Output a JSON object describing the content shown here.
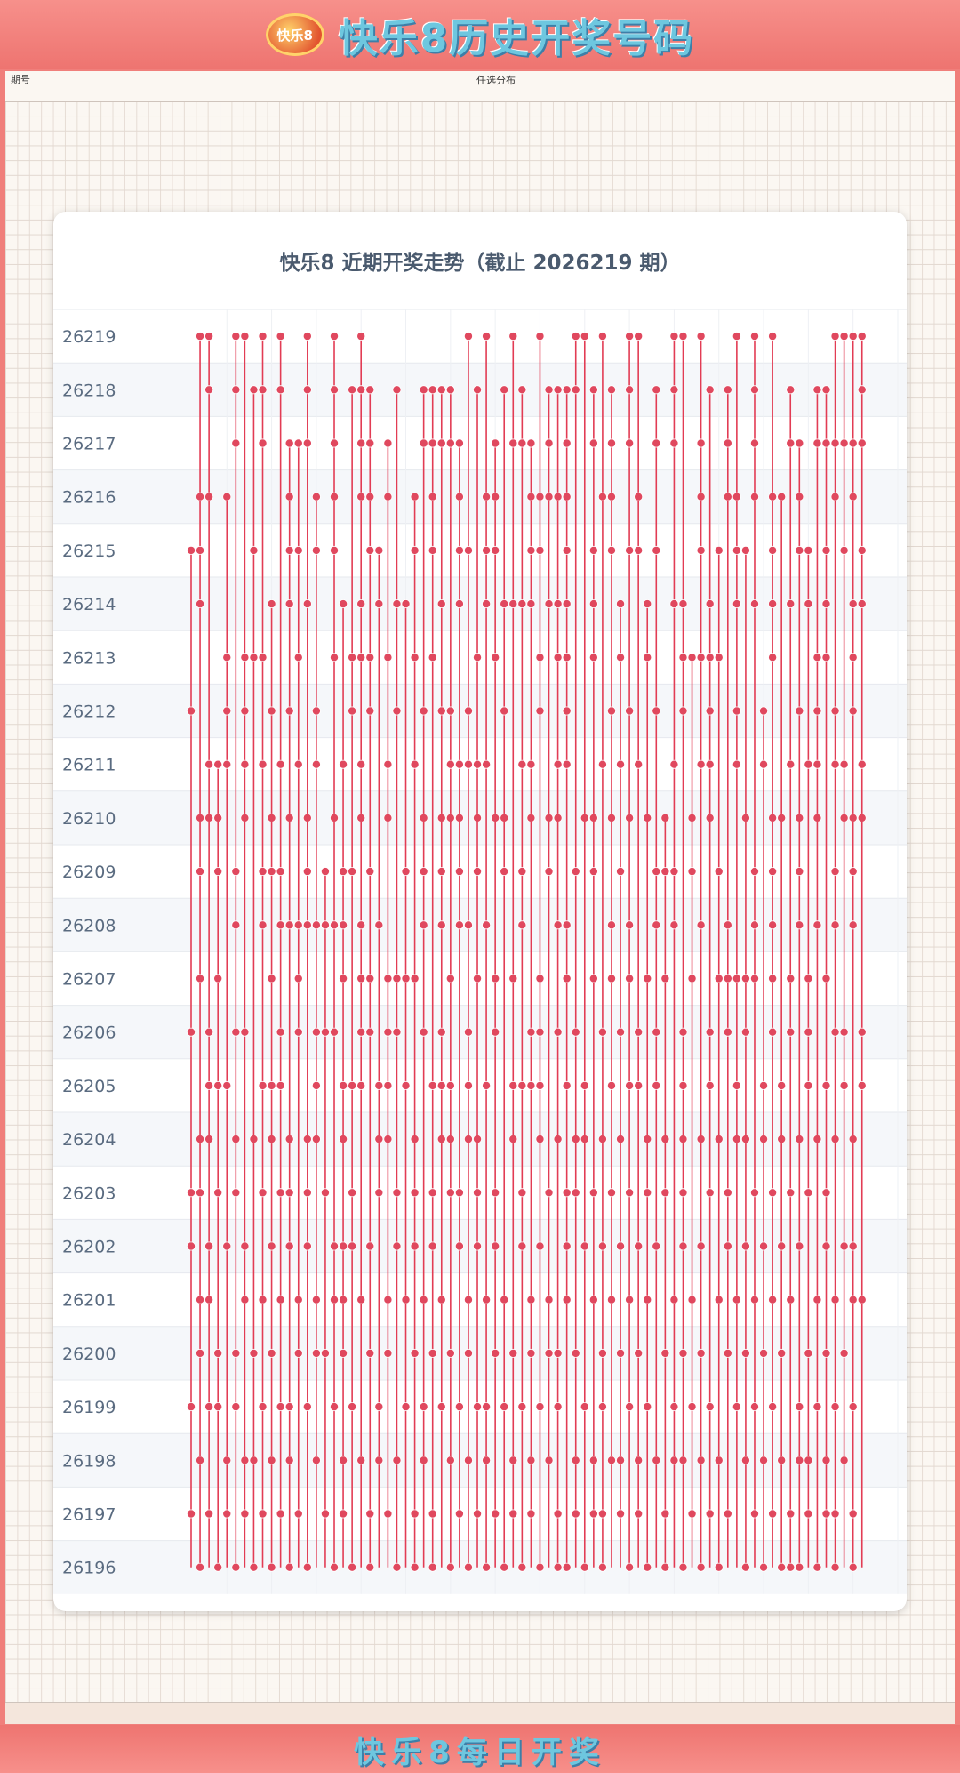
{
  "header": {
    "title": "快乐8历史开奖号码",
    "logo_text": "快乐8"
  },
  "footer": {
    "title": "快乐8每日开奖"
  },
  "grid": {
    "column_label": "任选分布",
    "period_label": "期号"
  },
  "colors": {
    "banner": "#f07f7b",
    "mark": "#e0485e",
    "line": "#e23c54",
    "title_text": "#4a5a6e"
  },
  "chart_data": {
    "type": "scatter",
    "title": "快乐8 近期开奖走势（截止 2026219 期）",
    "x_range": [
      1,
      80
    ],
    "rows": [
      {
        "period": "26219",
        "numbers": [
          2,
          3,
          6,
          7,
          9,
          11,
          14,
          17,
          20,
          32,
          34,
          37,
          40,
          44,
          45,
          47,
          50,
          51,
          55,
          56,
          58,
          62,
          64,
          66,
          73,
          74,
          75,
          76
        ]
      },
      {
        "period": "26218",
        "numbers": [
          3,
          6,
          8,
          9,
          11,
          14,
          17,
          19,
          20,
          21,
          24,
          27,
          28,
          29,
          30,
          33,
          36,
          38,
          41,
          42,
          43,
          44,
          46,
          48,
          50,
          53,
          55,
          59,
          61,
          64,
          68,
          71,
          72,
          76
        ]
      },
      {
        "period": "26217",
        "numbers": [
          6,
          9,
          12,
          13,
          14,
          17,
          20,
          21,
          23,
          27,
          28,
          29,
          30,
          31,
          35,
          37,
          38,
          39,
          41,
          43,
          46,
          48,
          50,
          53,
          55,
          58,
          61,
          64,
          68,
          69,
          71,
          72,
          73,
          74,
          75,
          76
        ]
      },
      {
        "period": "26216",
        "numbers": [
          2,
          3,
          5,
          12,
          15,
          17,
          20,
          21,
          23,
          26,
          28,
          31,
          34,
          35,
          39,
          40,
          41,
          42,
          43,
          47,
          48,
          51,
          58,
          61,
          62,
          64,
          66,
          67,
          69,
          73,
          75
        ]
      },
      {
        "period": "26215",
        "numbers": [
          1,
          2,
          8,
          12,
          13,
          15,
          17,
          21,
          22,
          26,
          28,
          31,
          32,
          34,
          35,
          39,
          40,
          43,
          46,
          48,
          50,
          51,
          53,
          58,
          60,
          62,
          63,
          66,
          69,
          70,
          72,
          74,
          76
        ]
      },
      {
        "period": "26214",
        "numbers": [
          2,
          10,
          12,
          14,
          18,
          20,
          22,
          24,
          25,
          29,
          31,
          34,
          36,
          37,
          38,
          39,
          41,
          42,
          43,
          46,
          49,
          52,
          55,
          56,
          59,
          62,
          64,
          66,
          68,
          70,
          72,
          75,
          76
        ]
      },
      {
        "period": "26213",
        "numbers": [
          5,
          7,
          8,
          9,
          13,
          17,
          19,
          20,
          21,
          23,
          26,
          28,
          33,
          35,
          40,
          42,
          43,
          46,
          49,
          52,
          56,
          57,
          58,
          59,
          60,
          66,
          71,
          72,
          75
        ]
      },
      {
        "period": "26212",
        "numbers": [
          1,
          5,
          7,
          10,
          12,
          15,
          19,
          21,
          24,
          27,
          29,
          30,
          32,
          36,
          40,
          43,
          48,
          50,
          53,
          56,
          59,
          62,
          65,
          69,
          71,
          73,
          75
        ]
      },
      {
        "period": "26211",
        "numbers": [
          3,
          4,
          5,
          7,
          9,
          11,
          13,
          15,
          18,
          20,
          23,
          26,
          30,
          31,
          32,
          33,
          34,
          38,
          39,
          42,
          43,
          47,
          49,
          51,
          55,
          58,
          59,
          62,
          65,
          68,
          70,
          71,
          73,
          74,
          76
        ]
      },
      {
        "period": "26210",
        "numbers": [
          2,
          3,
          4,
          7,
          10,
          12,
          14,
          17,
          20,
          23,
          27,
          29,
          30,
          31,
          33,
          35,
          36,
          39,
          41,
          42,
          45,
          46,
          48,
          50,
          52,
          54,
          57,
          59,
          63,
          66,
          67,
          69,
          71,
          74,
          75,
          76
        ]
      },
      {
        "period": "26209",
        "numbers": [
          2,
          4,
          6,
          9,
          10,
          11,
          14,
          16,
          18,
          19,
          21,
          25,
          27,
          29,
          31,
          33,
          36,
          38,
          41,
          44,
          46,
          49,
          53,
          54,
          55,
          57,
          60,
          64,
          66,
          69,
          73,
          75
        ]
      },
      {
        "period": "26208",
        "numbers": [
          6,
          9,
          11,
          12,
          13,
          14,
          15,
          16,
          17,
          18,
          20,
          22,
          27,
          29,
          31,
          32,
          34,
          38,
          42,
          43,
          48,
          50,
          53,
          55,
          58,
          61,
          64,
          66,
          69,
          71,
          73,
          75
        ]
      },
      {
        "period": "26207",
        "numbers": [
          2,
          4,
          10,
          13,
          18,
          20,
          21,
          23,
          24,
          25,
          26,
          30,
          33,
          35,
          37,
          40,
          43,
          46,
          48,
          50,
          52,
          54,
          57,
          60,
          61,
          62,
          63,
          64,
          66,
          68,
          70,
          72
        ]
      },
      {
        "period": "26206",
        "numbers": [
          1,
          3,
          6,
          7,
          11,
          13,
          15,
          16,
          17,
          20,
          21,
          23,
          24,
          27,
          29,
          32,
          35,
          39,
          40,
          42,
          44,
          47,
          49,
          51,
          53,
          56,
          59,
          61,
          63,
          66,
          68,
          70,
          73,
          74,
          76
        ]
      },
      {
        "period": "26205",
        "numbers": [
          3,
          4,
          5,
          9,
          10,
          11,
          15,
          18,
          19,
          20,
          22,
          23,
          25,
          28,
          29,
          30,
          32,
          34,
          37,
          38,
          39,
          40,
          43,
          45,
          48,
          50,
          51,
          53,
          56,
          59,
          62,
          65,
          67,
          70,
          72,
          74,
          76
        ]
      },
      {
        "period": "26204",
        "numbers": [
          2,
          3,
          6,
          8,
          10,
          12,
          14,
          15,
          18,
          22,
          23,
          26,
          29,
          30,
          32,
          33,
          37,
          40,
          42,
          44,
          45,
          47,
          49,
          52,
          54,
          56,
          58,
          60,
          62,
          63,
          65,
          67,
          69,
          71,
          73,
          75
        ]
      },
      {
        "period": "26203",
        "numbers": [
          1,
          2,
          4,
          6,
          9,
          11,
          12,
          14,
          16,
          19,
          22,
          24,
          26,
          28,
          30,
          31,
          33,
          35,
          38,
          41,
          43,
          44,
          46,
          48,
          50,
          52,
          54,
          56,
          59,
          61,
          64,
          66,
          68,
          70,
          72
        ]
      },
      {
        "period": "26202",
        "numbers": [
          1,
          3,
          5,
          7,
          10,
          12,
          14,
          17,
          18,
          19,
          21,
          24,
          26,
          28,
          31,
          33,
          35,
          38,
          40,
          43,
          45,
          47,
          49,
          51,
          53,
          56,
          58,
          61,
          63,
          65,
          67,
          69,
          72,
          74,
          75
        ]
      },
      {
        "period": "26201",
        "numbers": [
          2,
          3,
          7,
          9,
          11,
          13,
          15,
          17,
          18,
          20,
          23,
          25,
          27,
          29,
          32,
          34,
          36,
          39,
          41,
          43,
          46,
          48,
          50,
          52,
          55,
          57,
          60,
          62,
          64,
          66,
          68,
          71,
          73,
          75,
          76
        ]
      },
      {
        "period": "26200",
        "numbers": [
          2,
          4,
          6,
          8,
          10,
          13,
          15,
          16,
          18,
          21,
          23,
          26,
          28,
          30,
          32,
          35,
          37,
          39,
          41,
          42,
          44,
          47,
          49,
          51,
          54,
          56,
          58,
          61,
          63,
          65,
          67,
          70,
          72,
          74
        ]
      },
      {
        "period": "26199",
        "numbers": [
          1,
          3,
          4,
          6,
          9,
          11,
          12,
          14,
          17,
          19,
          22,
          25,
          27,
          29,
          31,
          33,
          34,
          36,
          38,
          40,
          42,
          45,
          47,
          50,
          52,
          55,
          57,
          59,
          62,
          64,
          66,
          69,
          71,
          73,
          75
        ]
      },
      {
        "period": "26198",
        "numbers": [
          2,
          5,
          7,
          8,
          10,
          12,
          15,
          18,
          20,
          22,
          24,
          27,
          30,
          32,
          34,
          37,
          39,
          41,
          44,
          46,
          48,
          49,
          51,
          53,
          55,
          56,
          58,
          60,
          63,
          65,
          67,
          69,
          70,
          72,
          74
        ]
      },
      {
        "period": "26197",
        "numbers": [
          1,
          3,
          5,
          7,
          9,
          11,
          13,
          16,
          18,
          21,
          23,
          26,
          28,
          31,
          33,
          35,
          37,
          39,
          42,
          44,
          46,
          47,
          49,
          51,
          54,
          57,
          59,
          61,
          64,
          66,
          68,
          70,
          72,
          73,
          75
        ]
      },
      {
        "period": "26196",
        "numbers": [
          2,
          4,
          6,
          8,
          10,
          12,
          14,
          17,
          19,
          21,
          24,
          26,
          28,
          30,
          32,
          34,
          36,
          38,
          40,
          42,
          43,
          45,
          47,
          50,
          52,
          54,
          56,
          58,
          60,
          63,
          65,
          67,
          68,
          69,
          71,
          73,
          75
        ]
      }
    ]
  }
}
